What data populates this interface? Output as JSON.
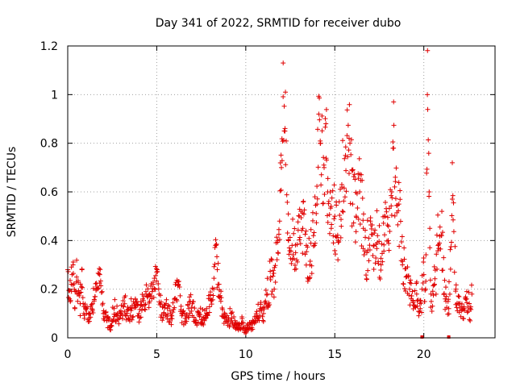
{
  "chart_data": {
    "type": "scatter",
    "title": "Day 341 of 2022, SRMTID for receiver dubo",
    "xlabel": "GPS time / hours",
    "ylabel": "SRMTID / TECUs",
    "xlim": [
      0,
      24
    ],
    "ylim": [
      0,
      1.2
    ],
    "x_ticks": [
      0,
      5,
      10,
      15,
      20
    ],
    "x_tick_labels": [
      "0",
      "5",
      "10",
      "15",
      "20"
    ],
    "y_ticks": [
      0,
      0.2,
      0.4,
      0.6,
      0.8,
      1.0,
      1.2
    ],
    "y_tick_labels": [
      "0",
      "0.2",
      "0.4",
      "0.6",
      "0.8",
      "1",
      "1.2"
    ],
    "grid": true,
    "marker": "plus",
    "color": "#e00000",
    "series": [
      {
        "name": "SRMTID",
        "x": [
          0.0,
          0.1,
          0.2,
          0.3,
          0.4,
          0.5,
          0.6,
          0.7,
          0.8,
          0.9,
          1.0,
          1.2,
          1.4,
          1.6,
          1.8,
          2.0,
          2.2,
          2.4,
          2.6,
          2.8,
          3.0,
          3.2,
          3.4,
          3.6,
          3.8,
          4.0,
          4.2,
          4.4,
          4.6,
          4.8,
          5.0,
          5.2,
          5.4,
          5.6,
          5.8,
          6.0,
          6.2,
          6.4,
          6.6,
          6.8,
          7.0,
          7.2,
          7.4,
          7.6,
          7.8,
          8.0,
          8.2,
          8.3,
          8.4,
          8.5,
          8.6,
          8.8,
          9.0,
          9.2,
          9.4,
          9.6,
          9.8,
          10.0,
          10.2,
          10.4,
          10.6,
          10.8,
          11.0,
          11.2,
          11.4,
          11.6,
          11.8,
          11.9,
          12.0,
          12.1,
          12.2,
          12.4,
          12.6,
          12.8,
          13.0,
          13.2,
          13.4,
          13.6,
          13.8,
          14.0,
          14.1,
          14.2,
          14.4,
          14.5,
          14.6,
          14.8,
          15.0,
          15.2,
          15.4,
          15.6,
          15.8,
          16.0,
          16.2,
          16.4,
          16.6,
          16.8,
          17.0,
          17.2,
          17.4,
          17.6,
          17.8,
          18.0,
          18.2,
          18.3,
          18.4,
          18.6,
          18.8,
          19.0,
          19.2,
          19.4,
          19.6,
          19.8,
          20.0,
          20.1,
          20.2,
          20.3,
          20.4,
          20.6,
          20.8,
          21.0,
          21.2,
          21.4,
          21.6,
          21.8,
          22.0,
          22.2,
          22.4,
          22.6,
          22.7
        ],
        "y": [
          0.28,
          0.16,
          0.22,
          0.3,
          0.12,
          0.25,
          0.18,
          0.14,
          0.28,
          0.1,
          0.12,
          0.08,
          0.14,
          0.2,
          0.26,
          0.1,
          0.07,
          0.05,
          0.12,
          0.09,
          0.1,
          0.14,
          0.08,
          0.12,
          0.16,
          0.1,
          0.13,
          0.18,
          0.15,
          0.22,
          0.27,
          0.14,
          0.1,
          0.12,
          0.08,
          0.16,
          0.22,
          0.1,
          0.08,
          0.12,
          0.14,
          0.06,
          0.1,
          0.08,
          0.12,
          0.16,
          0.2,
          0.38,
          0.28,
          0.22,
          0.15,
          0.08,
          0.06,
          0.1,
          0.05,
          0.04,
          0.06,
          0.03,
          0.04,
          0.06,
          0.08,
          0.12,
          0.1,
          0.18,
          0.25,
          0.2,
          0.4,
          0.48,
          0.7,
          1.13,
          0.85,
          0.4,
          0.38,
          0.35,
          0.5,
          0.45,
          0.38,
          0.3,
          0.42,
          0.55,
          0.92,
          0.8,
          0.7,
          0.88,
          0.6,
          0.45,
          0.5,
          0.4,
          0.62,
          0.75,
          0.82,
          0.55,
          0.5,
          0.6,
          0.45,
          0.35,
          0.48,
          0.38,
          0.42,
          0.3,
          0.5,
          0.4,
          0.6,
          0.78,
          0.66,
          0.55,
          0.3,
          0.25,
          0.2,
          0.15,
          0.18,
          0.12,
          0.26,
          0.2,
          1.0,
          0.6,
          0.18,
          0.22,
          0.38,
          0.42,
          0.16,
          0.12,
          0.57,
          0.2,
          0.14,
          0.08,
          0.16,
          0.12,
          0.18
        ],
        "spread": [
          0.08,
          0.06,
          0.08,
          0.08,
          0.06,
          0.08,
          0.06,
          0.05,
          0.06,
          0.04,
          0.04,
          0.03,
          0.05,
          0.06,
          0.05,
          0.04,
          0.03,
          0.03,
          0.05,
          0.04,
          0.04,
          0.05,
          0.04,
          0.05,
          0.06,
          0.04,
          0.05,
          0.06,
          0.06,
          0.07,
          0.06,
          0.06,
          0.04,
          0.05,
          0.04,
          0.05,
          0.05,
          0.04,
          0.03,
          0.05,
          0.05,
          0.03,
          0.04,
          0.04,
          0.05,
          0.05,
          0.06,
          0.08,
          0.08,
          0.06,
          0.05,
          0.03,
          0.03,
          0.04,
          0.02,
          0.02,
          0.03,
          0.02,
          0.02,
          0.03,
          0.03,
          0.05,
          0.04,
          0.08,
          0.1,
          0.1,
          0.12,
          0.15,
          0.2,
          0.25,
          0.25,
          0.12,
          0.12,
          0.12,
          0.15,
          0.14,
          0.12,
          0.1,
          0.14,
          0.16,
          0.15,
          0.2,
          0.2,
          0.18,
          0.18,
          0.14,
          0.15,
          0.12,
          0.16,
          0.18,
          0.2,
          0.16,
          0.15,
          0.16,
          0.14,
          0.12,
          0.14,
          0.12,
          0.12,
          0.1,
          0.12,
          0.1,
          0.14,
          0.2,
          0.2,
          0.15,
          0.1,
          0.08,
          0.06,
          0.05,
          0.06,
          0.05,
          0.1,
          0.1,
          0.2,
          0.2,
          0.08,
          0.1,
          0.14,
          0.14,
          0.06,
          0.05,
          0.15,
          0.08,
          0.06,
          0.04,
          0.06,
          0.05,
          0.06
        ]
      }
    ],
    "zero_markers_x": [
      19.9,
      21.4
    ]
  }
}
